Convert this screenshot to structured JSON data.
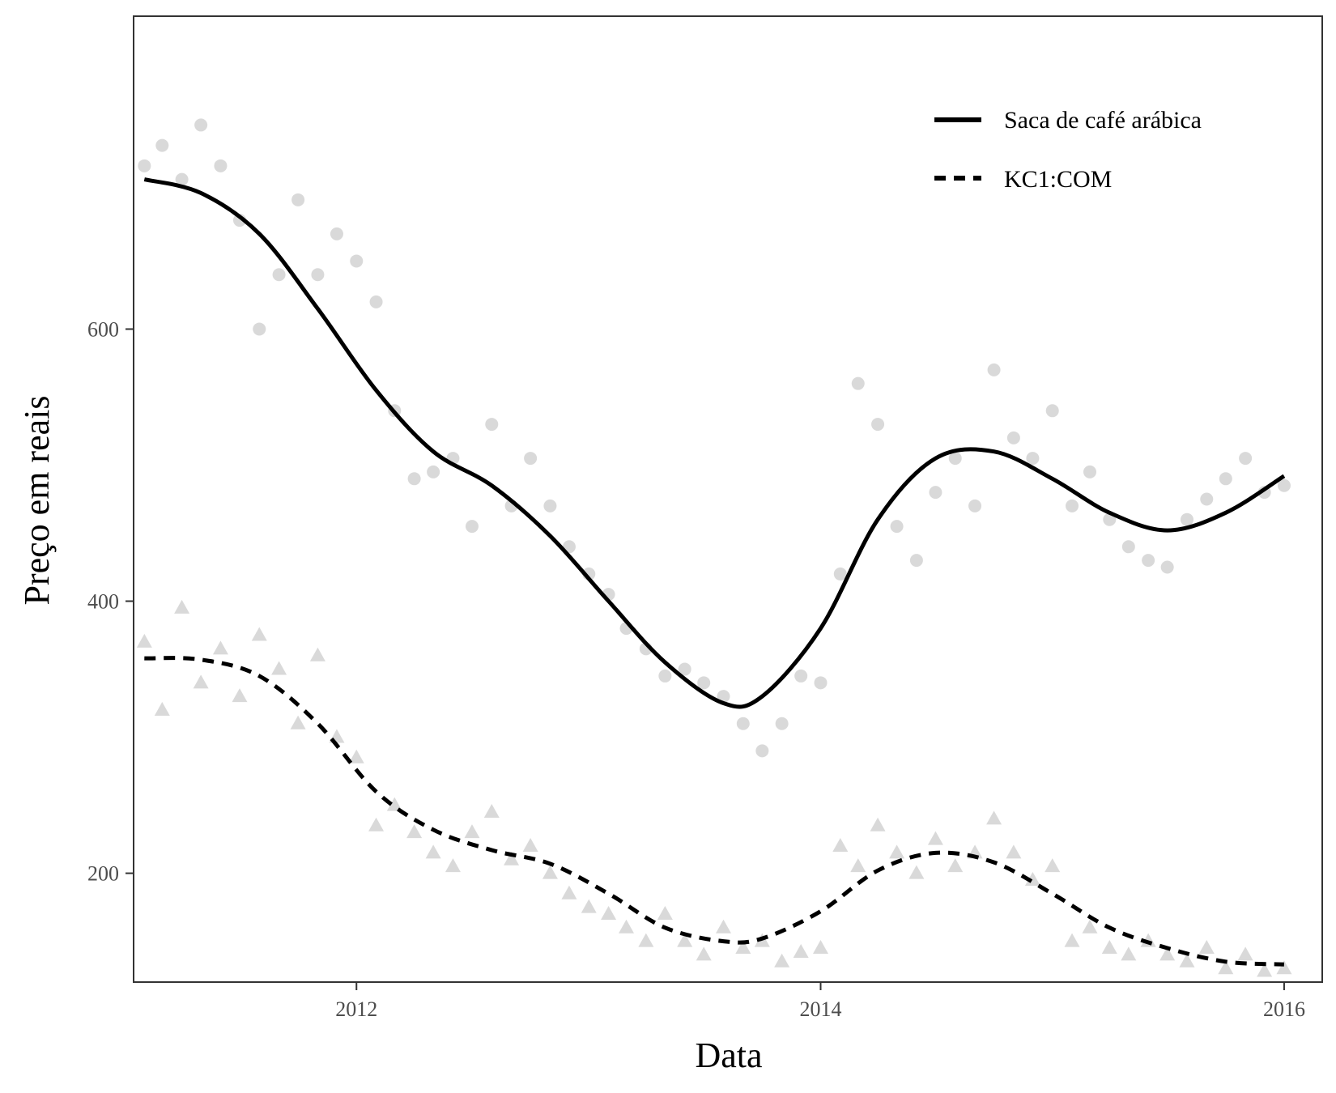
{
  "chart_data": {
    "type": "scatter",
    "xlabel": "Data",
    "ylabel": "Preço em reais",
    "x_ticks": [
      "2012",
      "2014",
      "2016"
    ],
    "y_ticks": [
      "200",
      "400",
      "600"
    ],
    "xlim": [
      "2011-01-15",
      "2016-03-01"
    ],
    "ylim": [
      120,
      830
    ],
    "grid": false,
    "legend_position": "top-right",
    "colors": {
      "points": "#808080",
      "lines": "#000000",
      "frame": "#333333"
    },
    "series": [
      {
        "name": "Saca de café arábica",
        "line_style": "solid",
        "marker": "circle",
        "smooth": [
          {
            "x": "2011-02-01",
            "y": 710
          },
          {
            "x": "2011-05-01",
            "y": 700
          },
          {
            "x": "2011-08-01",
            "y": 670
          },
          {
            "x": "2011-11-01",
            "y": 615
          },
          {
            "x": "2012-02-01",
            "y": 555
          },
          {
            "x": "2012-05-01",
            "y": 510
          },
          {
            "x": "2012-08-01",
            "y": 485
          },
          {
            "x": "2012-11-01",
            "y": 448
          },
          {
            "x": "2013-02-01",
            "y": 400
          },
          {
            "x": "2013-05-01",
            "y": 355
          },
          {
            "x": "2013-08-01",
            "y": 325
          },
          {
            "x": "2013-10-01",
            "y": 330
          },
          {
            "x": "2014-01-01",
            "y": 380
          },
          {
            "x": "2014-04-01",
            "y": 460
          },
          {
            "x": "2014-07-01",
            "y": 505
          },
          {
            "x": "2014-10-01",
            "y": 510
          },
          {
            "x": "2015-01-01",
            "y": 490
          },
          {
            "x": "2015-04-01",
            "y": 465
          },
          {
            "x": "2015-07-01",
            "y": 452
          },
          {
            "x": "2015-10-01",
            "y": 465
          },
          {
            "x": "2016-01-01",
            "y": 492
          }
        ],
        "observations": [
          {
            "x": "2011-02-01",
            "y": 720
          },
          {
            "x": "2011-03-01",
            "y": 735
          },
          {
            "x": "2011-04-01",
            "y": 710
          },
          {
            "x": "2011-05-01",
            "y": 750
          },
          {
            "x": "2011-06-01",
            "y": 720
          },
          {
            "x": "2011-07-01",
            "y": 680
          },
          {
            "x": "2011-08-01",
            "y": 600
          },
          {
            "x": "2011-09-01",
            "y": 640
          },
          {
            "x": "2011-10-01",
            "y": 695
          },
          {
            "x": "2011-11-01",
            "y": 640
          },
          {
            "x": "2011-12-01",
            "y": 670
          },
          {
            "x": "2012-01-01",
            "y": 650
          },
          {
            "x": "2012-02-01",
            "y": 620
          },
          {
            "x": "2012-03-01",
            "y": 540
          },
          {
            "x": "2012-04-01",
            "y": 490
          },
          {
            "x": "2012-05-01",
            "y": 495
          },
          {
            "x": "2012-06-01",
            "y": 505
          },
          {
            "x": "2012-07-01",
            "y": 455
          },
          {
            "x": "2012-08-01",
            "y": 530
          },
          {
            "x": "2012-09-01",
            "y": 470
          },
          {
            "x": "2012-10-01",
            "y": 505
          },
          {
            "x": "2012-11-01",
            "y": 470
          },
          {
            "x": "2012-12-01",
            "y": 440
          },
          {
            "x": "2013-01-01",
            "y": 420
          },
          {
            "x": "2013-02-01",
            "y": 405
          },
          {
            "x": "2013-03-01",
            "y": 380
          },
          {
            "x": "2013-04-01",
            "y": 365
          },
          {
            "x": "2013-05-01",
            "y": 345
          },
          {
            "x": "2013-06-01",
            "y": 350
          },
          {
            "x": "2013-07-01",
            "y": 340
          },
          {
            "x": "2013-08-01",
            "y": 330
          },
          {
            "x": "2013-09-01",
            "y": 310
          },
          {
            "x": "2013-10-01",
            "y": 290
          },
          {
            "x": "2013-11-01",
            "y": 310
          },
          {
            "x": "2013-12-01",
            "y": 345
          },
          {
            "x": "2014-01-01",
            "y": 340
          },
          {
            "x": "2014-02-01",
            "y": 420
          },
          {
            "x": "2014-03-01",
            "y": 560
          },
          {
            "x": "2014-04-01",
            "y": 530
          },
          {
            "x": "2014-05-01",
            "y": 455
          },
          {
            "x": "2014-06-01",
            "y": 430
          },
          {
            "x": "2014-07-01",
            "y": 480
          },
          {
            "x": "2014-08-01",
            "y": 505
          },
          {
            "x": "2014-09-01",
            "y": 470
          },
          {
            "x": "2014-10-01",
            "y": 570
          },
          {
            "x": "2014-11-01",
            "y": 520
          },
          {
            "x": "2014-12-01",
            "y": 505
          },
          {
            "x": "2015-01-01",
            "y": 540
          },
          {
            "x": "2015-02-01",
            "y": 470
          },
          {
            "x": "2015-03-01",
            "y": 495
          },
          {
            "x": "2015-04-01",
            "y": 460
          },
          {
            "x": "2015-05-01",
            "y": 440
          },
          {
            "x": "2015-06-01",
            "y": 430
          },
          {
            "x": "2015-07-01",
            "y": 425
          },
          {
            "x": "2015-08-01",
            "y": 460
          },
          {
            "x": "2015-09-01",
            "y": 475
          },
          {
            "x": "2015-10-01",
            "y": 490
          },
          {
            "x": "2015-11-01",
            "y": 505
          },
          {
            "x": "2015-12-01",
            "y": 480
          },
          {
            "x": "2016-01-01",
            "y": 485
          }
        ]
      },
      {
        "name": "KC1:COM",
        "line_style": "dashed",
        "marker": "triangle",
        "smooth": [
          {
            "x": "2011-02-01",
            "y": 358
          },
          {
            "x": "2011-05-01",
            "y": 357
          },
          {
            "x": "2011-08-01",
            "y": 345
          },
          {
            "x": "2011-11-01",
            "y": 310
          },
          {
            "x": "2012-02-01",
            "y": 260
          },
          {
            "x": "2012-05-01",
            "y": 232
          },
          {
            "x": "2012-08-01",
            "y": 217
          },
          {
            "x": "2012-11-01",
            "y": 207
          },
          {
            "x": "2013-02-01",
            "y": 185
          },
          {
            "x": "2013-05-01",
            "y": 160
          },
          {
            "x": "2013-08-01",
            "y": 150
          },
          {
            "x": "2013-10-01",
            "y": 152
          },
          {
            "x": "2014-01-01",
            "y": 172
          },
          {
            "x": "2014-04-01",
            "y": 202
          },
          {
            "x": "2014-07-01",
            "y": 215
          },
          {
            "x": "2014-10-01",
            "y": 208
          },
          {
            "x": "2015-01-01",
            "y": 185
          },
          {
            "x": "2015-04-01",
            "y": 160
          },
          {
            "x": "2015-07-01",
            "y": 145
          },
          {
            "x": "2015-10-01",
            "y": 135
          },
          {
            "x": "2016-01-01",
            "y": 133
          }
        ],
        "observations": [
          {
            "x": "2011-02-01",
            "y": 370
          },
          {
            "x": "2011-03-01",
            "y": 320
          },
          {
            "x": "2011-04-01",
            "y": 395
          },
          {
            "x": "2011-05-01",
            "y": 340
          },
          {
            "x": "2011-06-01",
            "y": 365
          },
          {
            "x": "2011-07-01",
            "y": 330
          },
          {
            "x": "2011-08-01",
            "y": 375
          },
          {
            "x": "2011-09-01",
            "y": 350
          },
          {
            "x": "2011-10-01",
            "y": 310
          },
          {
            "x": "2011-11-01",
            "y": 360
          },
          {
            "x": "2011-12-01",
            "y": 300
          },
          {
            "x": "2012-01-01",
            "y": 285
          },
          {
            "x": "2012-02-01",
            "y": 235
          },
          {
            "x": "2012-03-01",
            "y": 250
          },
          {
            "x": "2012-04-01",
            "y": 230
          },
          {
            "x": "2012-05-01",
            "y": 215
          },
          {
            "x": "2012-06-01",
            "y": 205
          },
          {
            "x": "2012-07-01",
            "y": 230
          },
          {
            "x": "2012-08-01",
            "y": 245
          },
          {
            "x": "2012-09-01",
            "y": 210
          },
          {
            "x": "2012-10-01",
            "y": 220
          },
          {
            "x": "2012-11-01",
            "y": 200
          },
          {
            "x": "2012-12-01",
            "y": 185
          },
          {
            "x": "2013-01-01",
            "y": 175
          },
          {
            "x": "2013-02-01",
            "y": 170
          },
          {
            "x": "2013-03-01",
            "y": 160
          },
          {
            "x": "2013-04-01",
            "y": 150
          },
          {
            "x": "2013-05-01",
            "y": 170
          },
          {
            "x": "2013-06-01",
            "y": 150
          },
          {
            "x": "2013-07-01",
            "y": 140
          },
          {
            "x": "2013-08-01",
            "y": 160
          },
          {
            "x": "2013-09-01",
            "y": 145
          },
          {
            "x": "2013-10-01",
            "y": 150
          },
          {
            "x": "2013-11-01",
            "y": 135
          },
          {
            "x": "2013-12-01",
            "y": 142
          },
          {
            "x": "2014-01-01",
            "y": 145
          },
          {
            "x": "2014-02-01",
            "y": 220
          },
          {
            "x": "2014-03-01",
            "y": 205
          },
          {
            "x": "2014-04-01",
            "y": 235
          },
          {
            "x": "2014-05-01",
            "y": 215
          },
          {
            "x": "2014-06-01",
            "y": 200
          },
          {
            "x": "2014-07-01",
            "y": 225
          },
          {
            "x": "2014-08-01",
            "y": 205
          },
          {
            "x": "2014-09-01",
            "y": 215
          },
          {
            "x": "2014-10-01",
            "y": 240
          },
          {
            "x": "2014-11-01",
            "y": 215
          },
          {
            "x": "2014-12-01",
            "y": 195
          },
          {
            "x": "2015-01-01",
            "y": 205
          },
          {
            "x": "2015-02-01",
            "y": 150
          },
          {
            "x": "2015-03-01",
            "y": 160
          },
          {
            "x": "2015-04-01",
            "y": 145
          },
          {
            "x": "2015-05-01",
            "y": 140
          },
          {
            "x": "2015-06-01",
            "y": 150
          },
          {
            "x": "2015-07-01",
            "y": 140
          },
          {
            "x": "2015-08-01",
            "y": 135
          },
          {
            "x": "2015-09-01",
            "y": 145
          },
          {
            "x": "2015-10-01",
            "y": 130
          },
          {
            "x": "2015-11-01",
            "y": 140
          },
          {
            "x": "2015-12-01",
            "y": 128
          },
          {
            "x": "2016-01-01",
            "y": 130
          }
        ]
      }
    ]
  }
}
